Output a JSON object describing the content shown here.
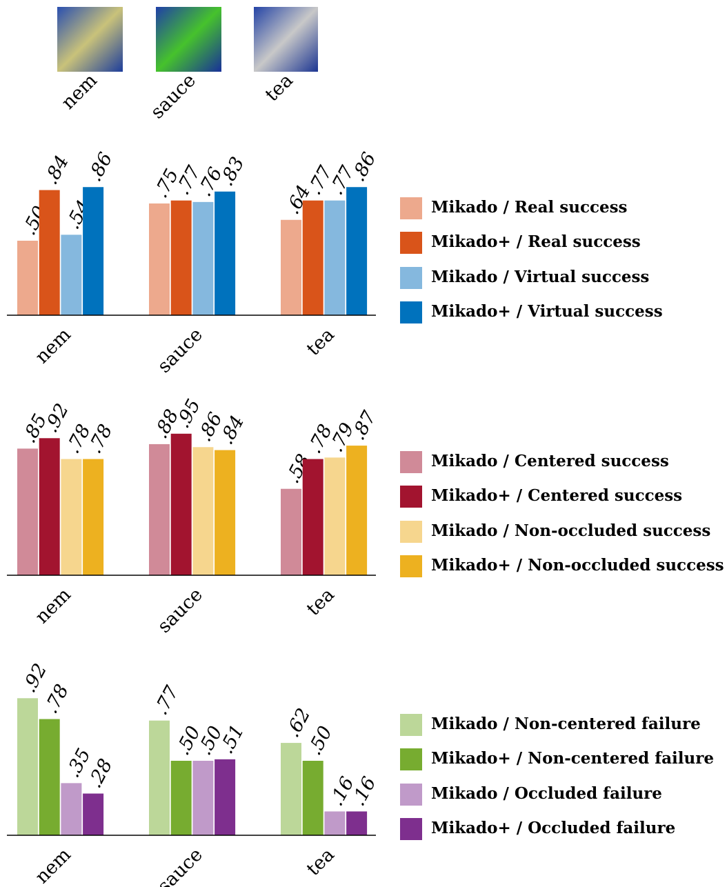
{
  "thumbnails": [
    "nem",
    "sauce",
    "tea"
  ],
  "chart_data": [
    {
      "type": "bar",
      "categories": [
        "nem",
        "sauce",
        "tea"
      ],
      "ylim": [
        0,
        1
      ],
      "series": [
        {
          "name": "Mikado / Real success",
          "color": "#eda98d",
          "values": [
            0.5,
            0.75,
            0.64
          ],
          "value_labels": [
            ".50",
            ".75",
            ".64"
          ]
        },
        {
          "name": "Mikado+ / Real success",
          "color": "#d9541a",
          "values": [
            0.84,
            0.77,
            0.77
          ],
          "value_labels": [
            ".84",
            ".77",
            ".77"
          ]
        },
        {
          "name": "Mikado / Virtual success",
          "color": "#85b8de",
          "values": [
            0.54,
            0.76,
            0.77
          ],
          "value_labels": [
            ".54",
            ".76",
            ".77"
          ]
        },
        {
          "name": "Mikado+ / Virtual success",
          "color": "#0072bd",
          "values": [
            0.86,
            0.83,
            0.86
          ],
          "value_labels": [
            ".86",
            ".83",
            ".86"
          ]
        }
      ]
    },
    {
      "type": "bar",
      "categories": [
        "nem",
        "sauce",
        "tea"
      ],
      "ylim": [
        0,
        1
      ],
      "series": [
        {
          "name": "Mikado / Centered success",
          "color": "#d08a98",
          "values": [
            0.85,
            0.88,
            0.58
          ],
          "value_labels": [
            ".85",
            ".88",
            ".58"
          ]
        },
        {
          "name": "Mikado+ / Centered success",
          "color": "#a2142f",
          "values": [
            0.92,
            0.95,
            0.78
          ],
          "value_labels": [
            ".92",
            ".95",
            ".78"
          ]
        },
        {
          "name": "Mikado / Non-occluded success",
          "color": "#f6d68e",
          "values": [
            0.78,
            0.86,
            0.79
          ],
          "value_labels": [
            ".78",
            ".86",
            ".79"
          ]
        },
        {
          "name": "Mikado+ / Non-occluded success",
          "color": "#edb120",
          "values": [
            0.78,
            0.84,
            0.87
          ],
          "value_labels": [
            ".78",
            ".84",
            ".87"
          ]
        }
      ]
    },
    {
      "type": "bar",
      "categories": [
        "nem",
        "sauce",
        "tea"
      ],
      "ylim": [
        0,
        1
      ],
      "series": [
        {
          "name": "Mikado / Non-centered failure",
          "color": "#bcd799",
          "values": [
            0.92,
            0.77,
            0.62
          ],
          "value_labels": [
            ".92",
            ".77",
            ".62"
          ]
        },
        {
          "name": "Mikado+ / Non-centered failure",
          "color": "#77ac30",
          "values": [
            0.78,
            0.5,
            0.5
          ],
          "value_labels": [
            ".78",
            ".50",
            ".50"
          ]
        },
        {
          "name": "Mikado / Occluded failure",
          "color": "#c09ac9",
          "values": [
            0.35,
            0.5,
            0.16
          ],
          "value_labels": [
            ".35",
            ".50",
            ".16"
          ]
        },
        {
          "name": "Mikado+ / Occluded failure",
          "color": "#7e2f8e",
          "values": [
            0.28,
            0.51,
            0.16
          ],
          "value_labels": [
            ".28",
            ".51",
            ".16"
          ]
        }
      ]
    }
  ]
}
